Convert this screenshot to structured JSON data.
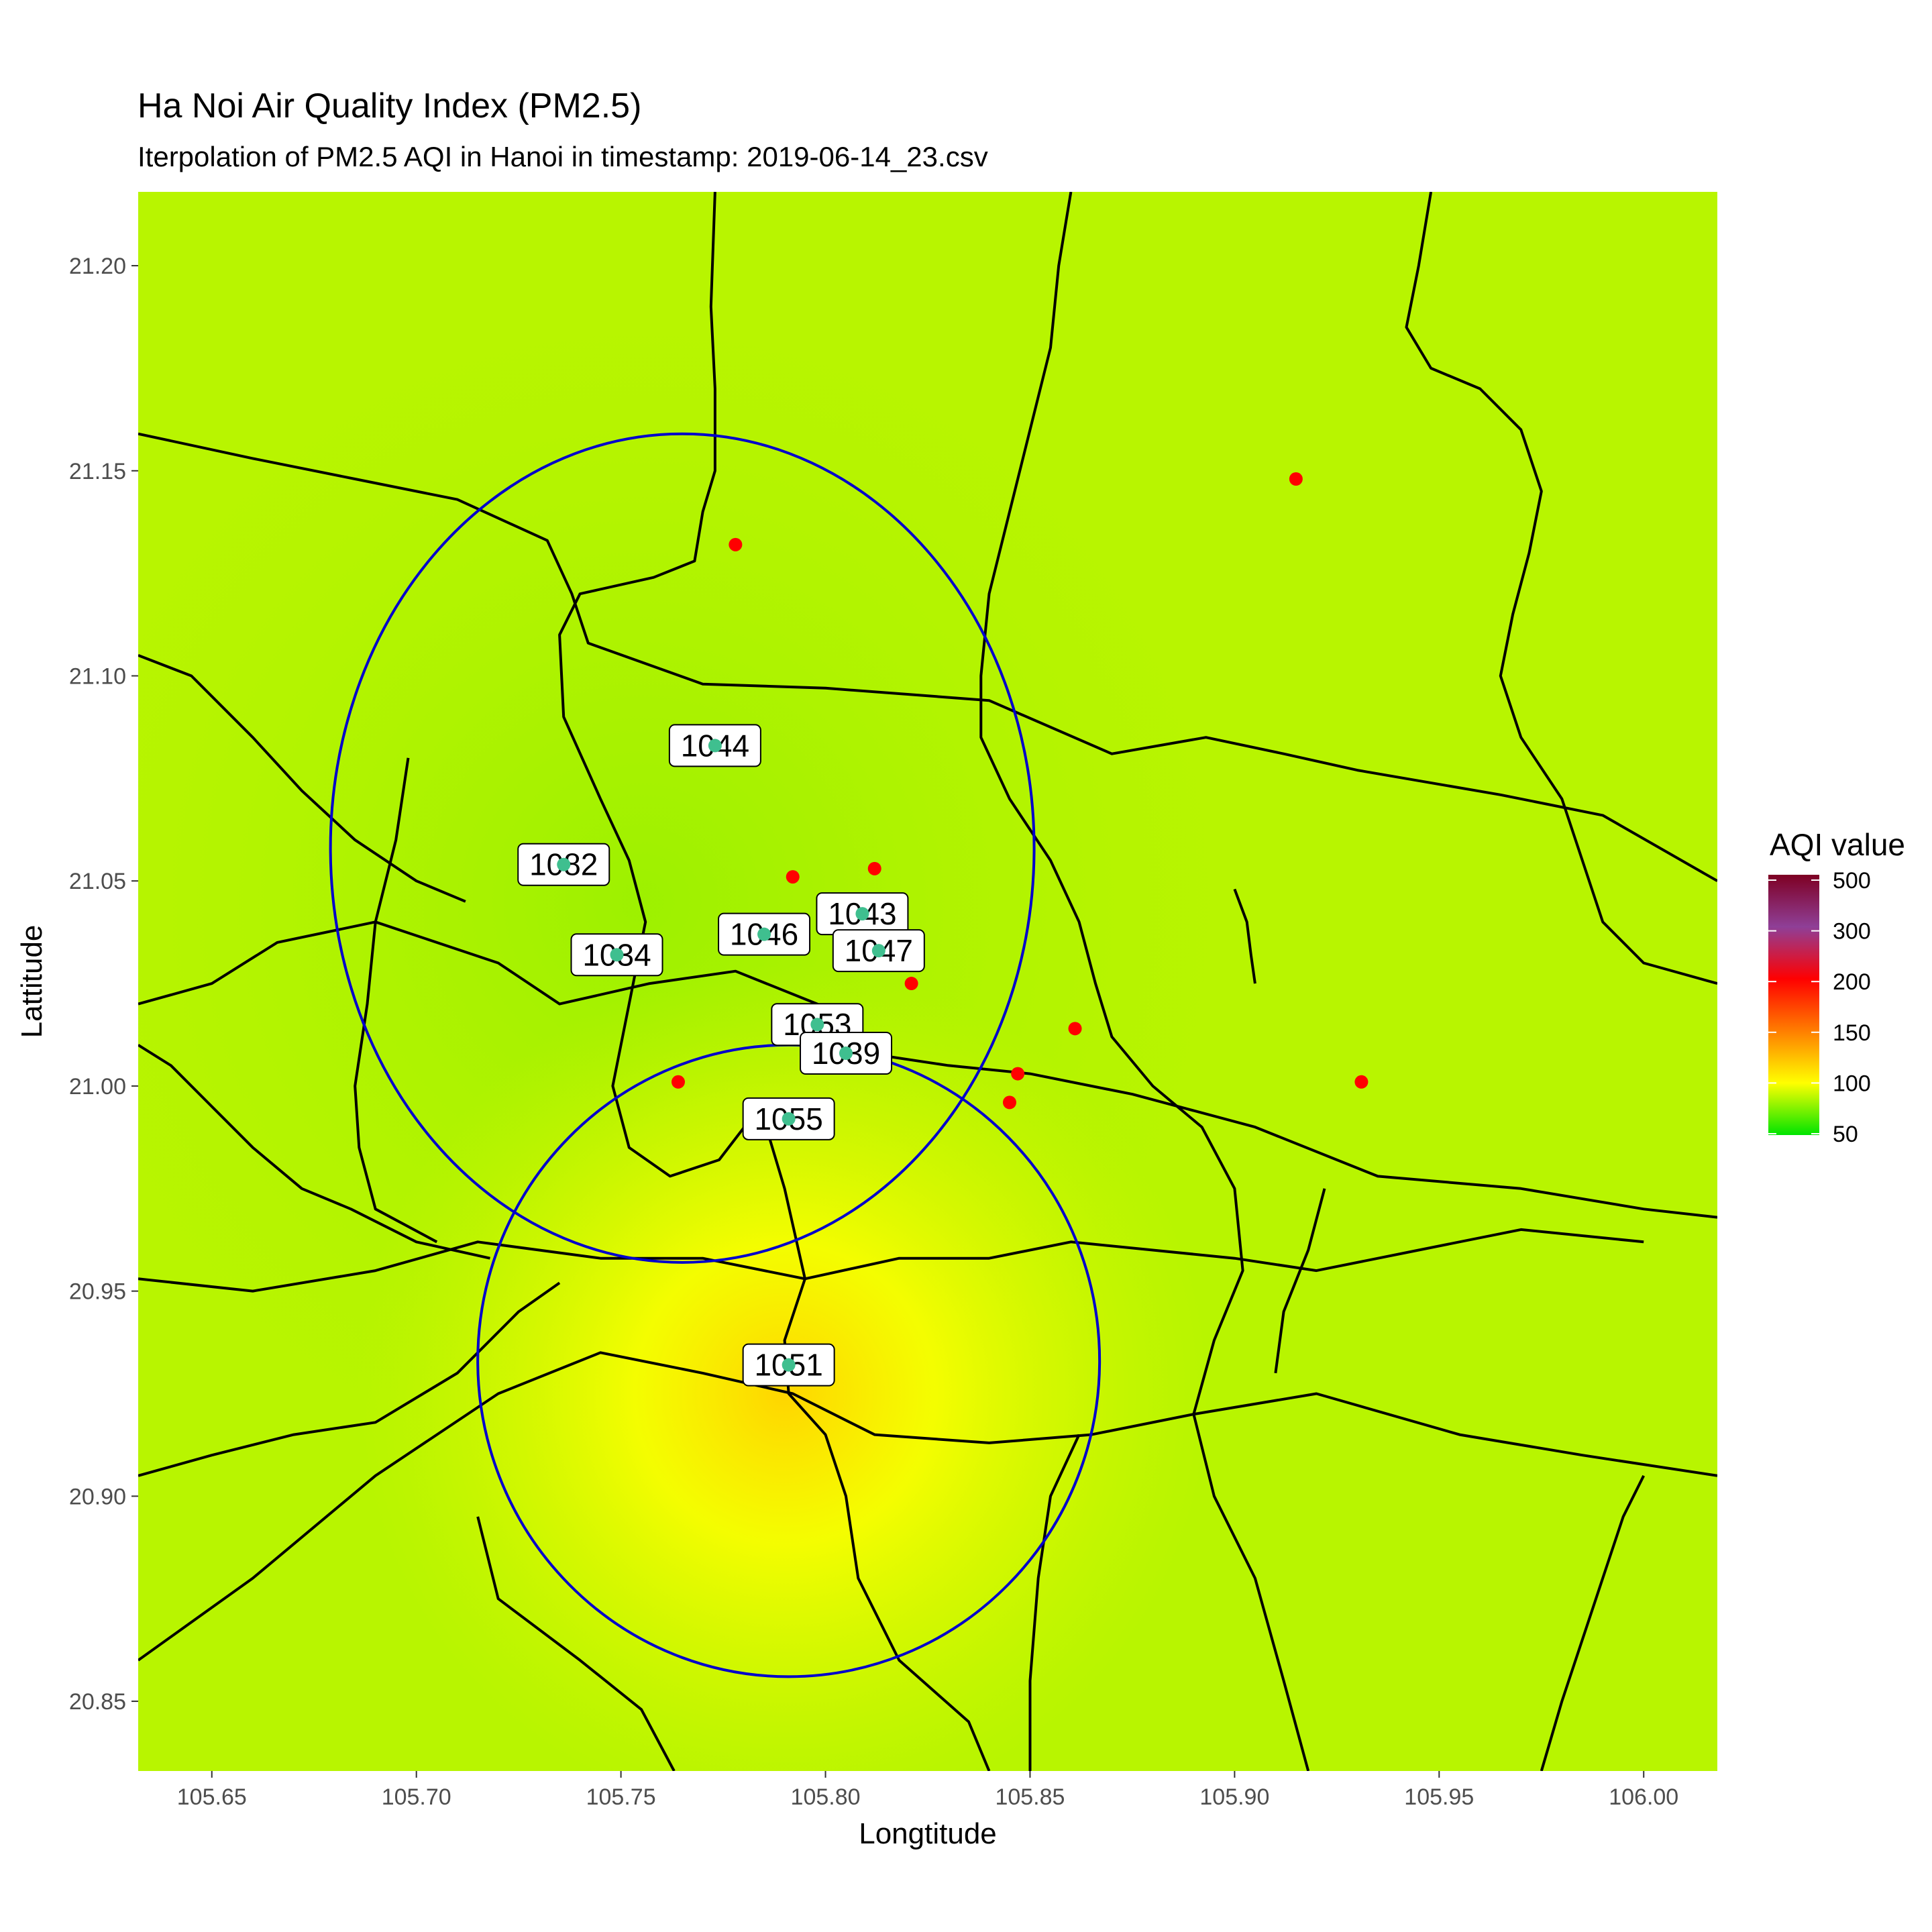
{
  "title": "Ha Noi Air Quality Index (PM2.5)",
  "subtitle": "Iterpolation of PM2.5 AQI in Hanoi in timestamp:  2019-06-14_23.csv",
  "chart_data": {
    "type": "heatmap",
    "xlabel": "Longtitude",
    "ylabel": "Lattitude",
    "xlim": [
      105.632,
      106.018
    ],
    "ylim": [
      20.833,
      21.218
    ],
    "x_ticks": [
      "105.65",
      "105.70",
      "105.75",
      "105.80",
      "105.85",
      "105.90",
      "105.95",
      "106.00"
    ],
    "y_ticks": [
      "21.20",
      "21.15",
      "21.10",
      "21.05",
      "21.00",
      "20.95",
      "20.90",
      "20.85"
    ],
    "grid": false,
    "legend": {
      "title": "AQI value",
      "position": "right",
      "ticks": [
        "500",
        "300",
        "200",
        "150",
        "100",
        "50"
      ],
      "colors": [
        "#7e0023",
        "#8f3f97",
        "#ff0000",
        "#ff7e00",
        "#ffff00",
        "#00e400"
      ]
    },
    "heat_peak": {
      "lon": 105.79,
      "lat": 20.925,
      "color": "#ffd500"
    },
    "base_color": "#b8f500",
    "stations": [
      {
        "label": "1044",
        "lon": 105.773,
        "lat": 21.083
      },
      {
        "label": "1082",
        "lon": 105.736,
        "lat": 21.054
      },
      {
        "label": "1034",
        "lon": 105.749,
        "lat": 21.032
      },
      {
        "label": "1046",
        "lon": 105.785,
        "lat": 21.037
      },
      {
        "label": "1043",
        "lon": 105.809,
        "lat": 21.042
      },
      {
        "label": "1047",
        "lon": 105.813,
        "lat": 21.033
      },
      {
        "label": "1053",
        "lon": 105.798,
        "lat": 21.015
      },
      {
        "label": "1039",
        "lon": 105.805,
        "lat": 21.008
      },
      {
        "label": "1055",
        "lon": 105.791,
        "lat": 20.992
      },
      {
        "label": "1051",
        "lon": 105.791,
        "lat": 20.932
      }
    ],
    "sensors": [
      {
        "lon": 105.779,
        "lat": 21.083
      },
      {
        "lon": 105.778,
        "lat": 21.132
      },
      {
        "lon": 105.915,
        "lat": 21.148
      },
      {
        "lon": 105.792,
        "lat": 21.051
      },
      {
        "lon": 105.812,
        "lat": 21.053
      },
      {
        "lon": 105.786,
        "lat": 21.038
      },
      {
        "lon": 105.818,
        "lat": 21.032
      },
      {
        "lon": 105.821,
        "lat": 21.025
      },
      {
        "lon": 105.795,
        "lat": 21.018
      },
      {
        "lon": 105.861,
        "lat": 21.014
      },
      {
        "lon": 105.764,
        "lat": 21.001
      },
      {
        "lon": 105.847,
        "lat": 21.003
      },
      {
        "lon": 105.845,
        "lat": 20.996
      },
      {
        "lon": 105.931,
        "lat": 21.001
      }
    ],
    "circles": [
      {
        "lon": 105.765,
        "lat": 21.058,
        "rlon": 0.086,
        "rlat": 0.101,
        "color": "#0000cc"
      },
      {
        "lon": 105.791,
        "lat": 20.933,
        "rlon": 0.076,
        "rlat": 0.077,
        "color": "#0000cc"
      }
    ],
    "boundaries": [
      [
        [
          105.632,
          21.159
        ],
        [
          105.66,
          21.153
        ],
        [
          105.685,
          21.148
        ],
        [
          105.71,
          21.143
        ],
        [
          105.732,
          21.133
        ],
        [
          105.738,
          21.12
        ],
        [
          105.742,
          21.108
        ],
        [
          105.77,
          21.098
        ],
        [
          105.8,
          21.097
        ],
        [
          105.84,
          21.094
        ],
        [
          105.87,
          21.081
        ],
        [
          105.893,
          21.085
        ],
        [
          105.912,
          21.081
        ],
        [
          105.93,
          21.077
        ],
        [
          105.965,
          21.071
        ],
        [
          105.99,
          21.066
        ],
        [
          106.018,
          21.05
        ]
      ],
      [
        [
          105.632,
          21.02
        ],
        [
          105.65,
          21.025
        ],
        [
          105.666,
          21.035
        ],
        [
          105.69,
          21.04
        ],
        [
          105.72,
          21.03
        ],
        [
          105.735,
          21.02
        ],
        [
          105.757,
          21.025
        ],
        [
          105.778,
          21.028
        ],
        [
          105.798,
          21.02
        ],
        [
          105.81,
          21.008
        ],
        [
          105.83,
          21.005
        ],
        [
          105.85,
          21.003
        ],
        [
          105.875,
          20.998
        ],
        [
          105.905,
          20.99
        ],
        [
          105.935,
          20.978
        ],
        [
          105.97,
          20.975
        ],
        [
          106.0,
          20.97
        ],
        [
          106.018,
          20.968
        ]
      ],
      [
        [
          105.632,
          20.953
        ],
        [
          105.66,
          20.95
        ],
        [
          105.69,
          20.955
        ],
        [
          105.715,
          20.962
        ],
        [
          105.745,
          20.958
        ],
        [
          105.77,
          20.958
        ],
        [
          105.795,
          20.953
        ],
        [
          105.818,
          20.958
        ],
        [
          105.84,
          20.958
        ],
        [
          105.86,
          20.962
        ],
        [
          105.88,
          20.96
        ],
        [
          105.9,
          20.958
        ],
        [
          105.92,
          20.955
        ],
        [
          105.945,
          20.96
        ],
        [
          105.97,
          20.965
        ],
        [
          106.0,
          20.962
        ]
      ],
      [
        [
          105.632,
          20.86
        ],
        [
          105.66,
          20.88
        ],
        [
          105.69,
          20.905
        ],
        [
          105.72,
          20.925
        ],
        [
          105.745,
          20.935
        ],
        [
          105.77,
          20.93
        ],
        [
          105.792,
          20.925
        ],
        [
          105.812,
          20.915
        ],
        [
          105.84,
          20.913
        ],
        [
          105.865,
          20.915
        ],
        [
          105.89,
          20.92
        ],
        [
          105.92,
          20.925
        ],
        [
          105.955,
          20.915
        ],
        [
          105.985,
          20.91
        ],
        [
          106.018,
          20.905
        ]
      ],
      [
        [
          105.773,
          21.218
        ],
        [
          105.772,
          21.19
        ],
        [
          105.773,
          21.17
        ],
        [
          105.773,
          21.15
        ],
        [
          105.77,
          21.14
        ],
        [
          105.768,
          21.128
        ],
        [
          105.758,
          21.124
        ],
        [
          105.74,
          21.12
        ],
        [
          105.735,
          21.11
        ],
        [
          105.736,
          21.09
        ],
        [
          105.745,
          21.07
        ],
        [
          105.752,
          21.055
        ],
        [
          105.756,
          21.04
        ],
        [
          105.752,
          21.02
        ],
        [
          105.748,
          21.0
        ],
        [
          105.752,
          20.985
        ],
        [
          105.762,
          20.978
        ],
        [
          105.774,
          20.982
        ],
        [
          105.784,
          20.995
        ],
        [
          105.79,
          20.975
        ],
        [
          105.795,
          20.953
        ],
        [
          105.79,
          20.938
        ],
        [
          105.791,
          20.925
        ],
        [
          105.8,
          20.915
        ],
        [
          105.805,
          20.9
        ],
        [
          105.808,
          20.88
        ],
        [
          105.818,
          20.86
        ],
        [
          105.835,
          20.845
        ],
        [
          105.84,
          20.833
        ]
      ],
      [
        [
          105.86,
          21.218
        ],
        [
          105.857,
          21.2
        ],
        [
          105.855,
          21.18
        ],
        [
          105.85,
          21.16
        ],
        [
          105.845,
          21.14
        ],
        [
          105.84,
          21.12
        ],
        [
          105.838,
          21.1
        ],
        [
          105.838,
          21.085
        ],
        [
          105.845,
          21.07
        ],
        [
          105.855,
          21.055
        ],
        [
          105.862,
          21.04
        ],
        [
          105.866,
          21.025
        ],
        [
          105.87,
          21.012
        ],
        [
          105.88,
          21.0
        ],
        [
          105.892,
          20.99
        ],
        [
          105.9,
          20.975
        ],
        [
          105.902,
          20.955
        ],
        [
          105.895,
          20.938
        ],
        [
          105.89,
          20.92
        ],
        [
          105.895,
          20.9
        ],
        [
          105.905,
          20.88
        ],
        [
          105.912,
          20.855
        ],
        [
          105.918,
          20.833
        ]
      ],
      [
        [
          105.948,
          21.218
        ],
        [
          105.945,
          21.2
        ],
        [
          105.942,
          21.185
        ],
        [
          105.948,
          21.175
        ],
        [
          105.96,
          21.17
        ],
        [
          105.97,
          21.16
        ],
        [
          105.975,
          21.145
        ],
        [
          105.972,
          21.13
        ],
        [
          105.968,
          21.115
        ],
        [
          105.965,
          21.1
        ],
        [
          105.97,
          21.085
        ],
        [
          105.98,
          21.07
        ],
        [
          105.985,
          21.055
        ],
        [
          105.99,
          21.04
        ],
        [
          106.0,
          21.03
        ],
        [
          106.018,
          21.025
        ]
      ],
      [
        [
          105.698,
          21.08
        ],
        [
          105.695,
          21.06
        ],
        [
          105.69,
          21.04
        ],
        [
          105.688,
          21.02
        ],
        [
          105.685,
          21.0
        ],
        [
          105.686,
          20.985
        ],
        [
          105.69,
          20.97
        ],
        [
          105.705,
          20.962
        ]
      ],
      [
        [
          105.632,
          21.105
        ],
        [
          105.645,
          21.1
        ],
        [
          105.66,
          21.085
        ],
        [
          105.672,
          21.072
        ],
        [
          105.685,
          21.06
        ],
        [
          105.7,
          21.05
        ],
        [
          105.712,
          21.045
        ]
      ],
      [
        [
          105.632,
          21.01
        ],
        [
          105.64,
          21.005
        ],
        [
          105.65,
          20.995
        ],
        [
          105.66,
          20.985
        ],
        [
          105.672,
          20.975
        ],
        [
          105.684,
          20.97
        ],
        [
          105.7,
          20.962
        ],
        [
          105.718,
          20.958
        ]
      ],
      [
        [
          105.632,
          20.905
        ],
        [
          105.65,
          20.91
        ],
        [
          105.67,
          20.915
        ],
        [
          105.69,
          20.918
        ],
        [
          105.71,
          20.93
        ],
        [
          105.725,
          20.945
        ],
        [
          105.735,
          20.952
        ]
      ],
      [
        [
          105.715,
          20.895
        ],
        [
          105.72,
          20.875
        ],
        [
          105.74,
          20.86
        ],
        [
          105.755,
          20.848
        ],
        [
          105.763,
          20.833
        ]
      ],
      [
        [
          105.85,
          20.833
        ],
        [
          105.85,
          20.855
        ],
        [
          105.852,
          20.88
        ],
        [
          105.855,
          20.9
        ],
        [
          105.862,
          20.915
        ]
      ],
      [
        [
          105.975,
          20.833
        ],
        [
          105.98,
          20.85
        ],
        [
          105.985,
          20.865
        ],
        [
          105.99,
          20.88
        ],
        [
          105.995,
          20.895
        ],
        [
          106.0,
          20.905
        ]
      ],
      [
        [
          105.9,
          21.048
        ],
        [
          105.903,
          21.04
        ],
        [
          105.904,
          21.032
        ],
        [
          105.905,
          21.025
        ]
      ],
      [
        [
          105.922,
          20.975
        ],
        [
          105.918,
          20.96
        ],
        [
          105.912,
          20.945
        ],
        [
          105.91,
          20.93
        ]
      ]
    ]
  }
}
